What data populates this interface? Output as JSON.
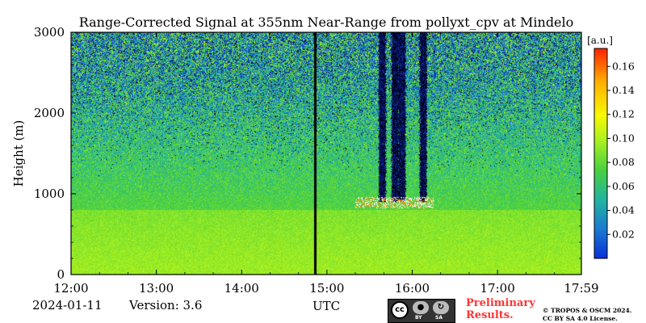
{
  "chart_data": {
    "type": "heatmap",
    "title": "Range-Corrected Signal at 355nm Near-Range from pollyxt_cpv at Mindelo",
    "ylabel": "Height (m)",
    "xlabel": "UTC",
    "x_range": [
      "12:00",
      "17:59"
    ],
    "ylim": [
      0,
      3000
    ],
    "x_ticks": [
      "12:00",
      "13:00",
      "14:00",
      "15:00",
      "16:00",
      "17:00",
      "17:59"
    ],
    "y_ticks": [
      0,
      1000,
      2000,
      3000
    ],
    "colorbar": {
      "unit": "[a.u.]",
      "range": [
        0.0,
        0.175
      ],
      "ticks": [
        0.02,
        0.04,
        0.06,
        0.08,
        0.1,
        0.12,
        0.14,
        0.16
      ],
      "tick_labels": [
        "0.02",
        "0.04",
        "0.06",
        "0.08",
        "0.10",
        "0.12",
        "0.14",
        "0.16"
      ],
      "colormap": [
        "#0a2fd8",
        "#1a7ad0",
        "#22b4a0",
        "#48d040",
        "#a8f020",
        "#f8f800",
        "#ffb000",
        "#ff2000"
      ]
    },
    "features": {
      "boundary_layer_top_m": 800,
      "cloud_base_m": 900,
      "cloud_period": [
        "15:20",
        "16:15"
      ],
      "data_gap_at": "14:52"
    },
    "grid": false
  },
  "footer": {
    "date": "2024-01-11",
    "version": "Version: 3.6",
    "prelim_line1": "Preliminary",
    "prelim_line2": "Results.",
    "copyright_line1": "© TROPOS & OSCM 2024.",
    "copyright_line2": "CC BY SA 4.0 License.",
    "cc_main": "cc",
    "cc_by": "BY",
    "cc_sa": "SA"
  }
}
